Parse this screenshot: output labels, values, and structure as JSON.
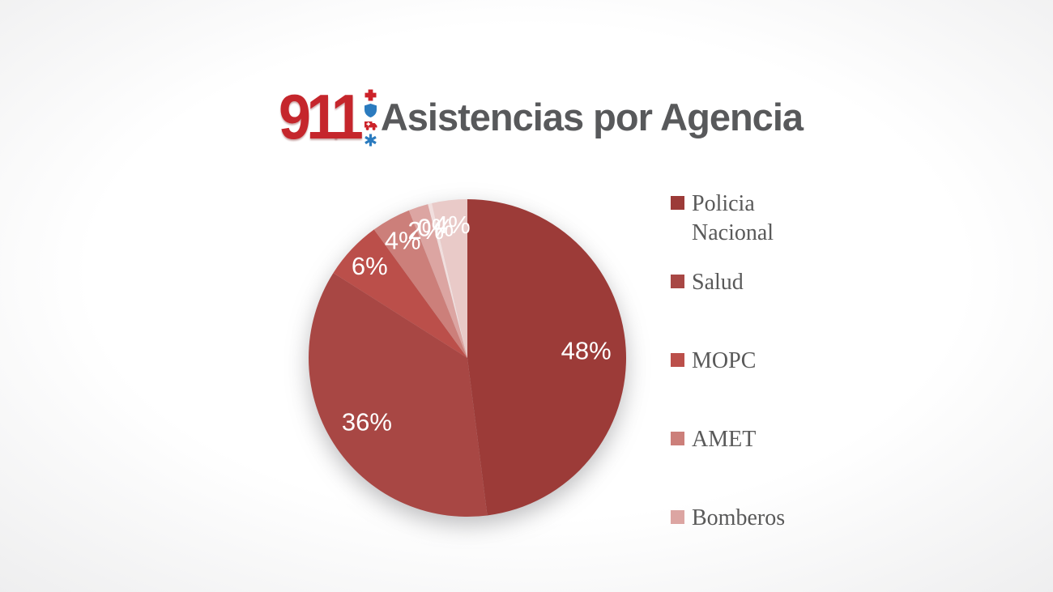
{
  "header": {
    "logo_text": "911",
    "logo_color": "#C5262C",
    "title": "Asistencias por Agencia",
    "title_color": "#58595B",
    "logo_icon_colors": {
      "red": "#CC2229",
      "blue": "#2B7BBF"
    }
  },
  "chart_data": {
    "type": "pie",
    "title": "Asistencias por Agencia",
    "unit": "percent",
    "start_angle_deg": 0,
    "direction": "clockwise",
    "grid": false,
    "label_color": "#FFFFFF",
    "legend_position": "right",
    "legend_text_color": "#595959",
    "slices": [
      {
        "name": "Policia Nacional",
        "value": 48,
        "label": "48%",
        "color": "#9C3B38",
        "in_legend": true
      },
      {
        "name": "Salud",
        "value": 36,
        "label": "36%",
        "color": "#A84744",
        "in_legend": true
      },
      {
        "name": "MOPC",
        "value": 6,
        "label": "6%",
        "color": "#BB4F4A",
        "in_legend": true
      },
      {
        "name": "AMET",
        "value": 4,
        "label": "4%",
        "color": "#CC7F7A",
        "in_legend": true
      },
      {
        "name": "Bomberos",
        "value": 2,
        "label": "2%",
        "color": "#DCA5A2",
        "in_legend": true
      },
      {
        "name": "",
        "value": 0.4,
        "label": "0%",
        "color": "#F1DFDE",
        "in_legend": false
      },
      {
        "name": "",
        "value": 3.6,
        "label": "4%",
        "color": "#E9CAC8",
        "in_legend": false
      }
    ]
  }
}
